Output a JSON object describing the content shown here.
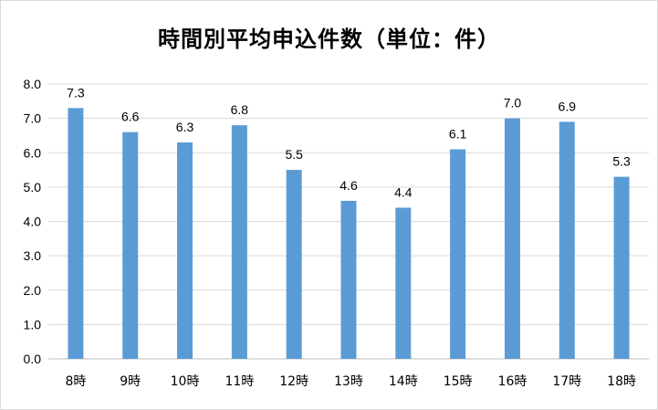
{
  "chart_data": {
    "type": "bar",
    "title": "時間別平均申込件数（単位：件）",
    "categories": [
      "8時",
      "9時",
      "10時",
      "11時",
      "12時",
      "13時",
      "14時",
      "15時",
      "16時",
      "17時",
      "18時"
    ],
    "values": [
      7.3,
      6.6,
      6.3,
      6.8,
      5.5,
      4.6,
      4.4,
      6.1,
      7.0,
      6.9,
      5.3
    ],
    "value_labels": [
      "7.3",
      "6.6",
      "6.3",
      "6.8",
      "5.5",
      "4.6",
      "4.4",
      "6.1",
      "7.0",
      "6.9",
      "5.3"
    ],
    "ylim": [
      0,
      8
    ],
    "yticks": [
      "0.0",
      "1.0",
      "2.0",
      "3.0",
      "4.0",
      "5.0",
      "6.0",
      "7.0",
      "8.0"
    ],
    "grid": true,
    "legend": "none",
    "colors": {
      "bar": "#5b9bd5",
      "grid": "#d9d9d9",
      "axis": "#bfbfbf"
    }
  }
}
